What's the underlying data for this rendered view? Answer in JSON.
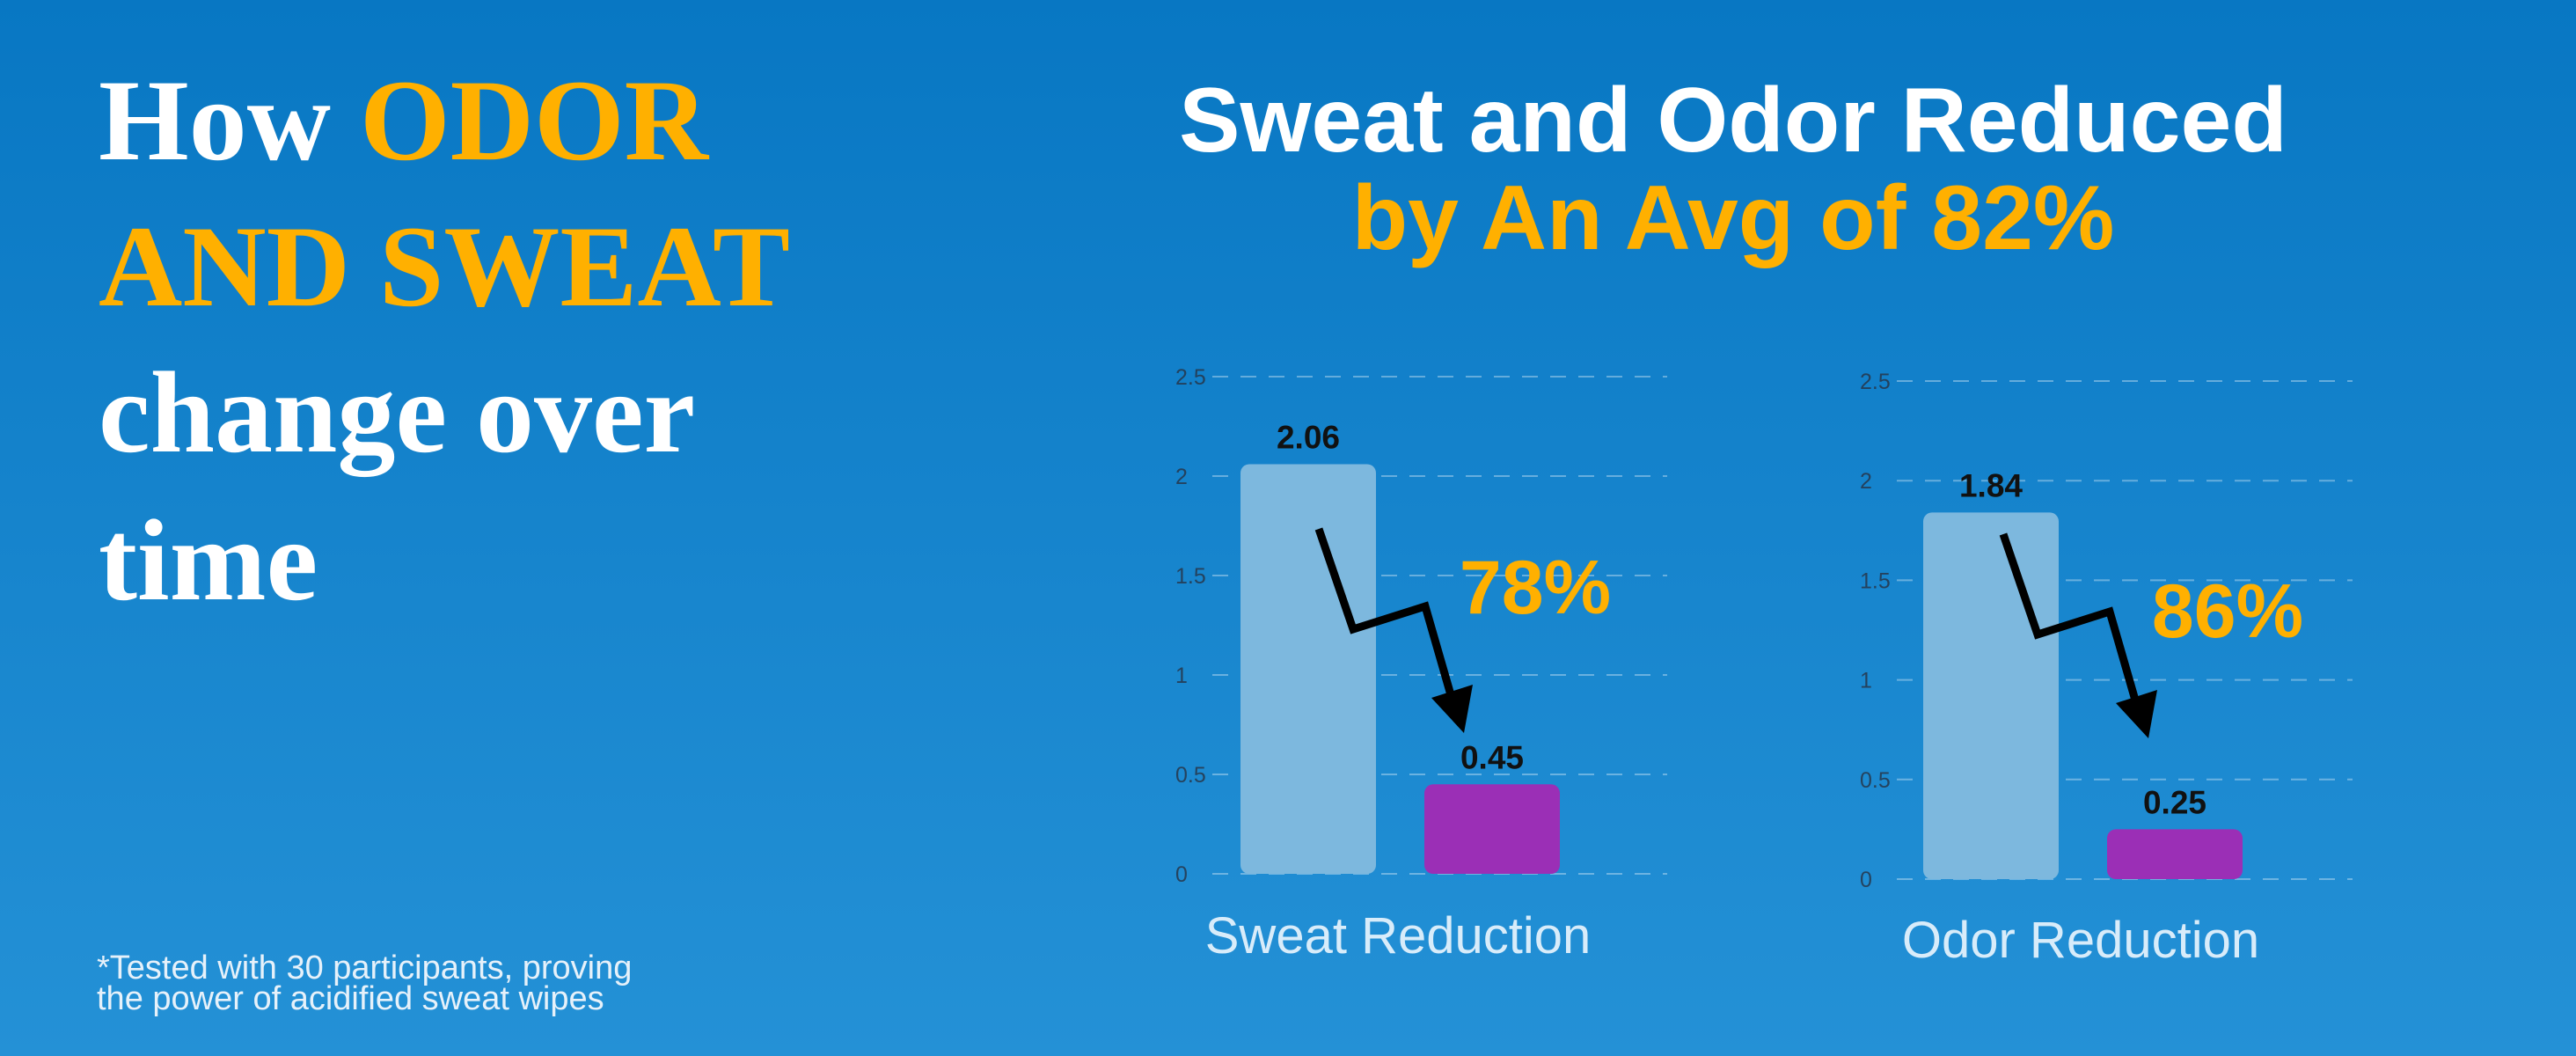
{
  "headline": {
    "line1a": "How",
    "line1b": "ODOR",
    "line2": "AND SWEAT",
    "line3": "change over",
    "line4": "time"
  },
  "heading": {
    "line1": "Sweat and Odor Reduced",
    "line2": "by An Avg of 82%"
  },
  "footnote": {
    "line1": "*Tested with 30 participants, proving",
    "line2": "the power of acidified sweat wipes"
  },
  "chart_data": [
    {
      "type": "bar",
      "categories": [
        null,
        null
      ],
      "values": [
        2.06,
        0.45
      ],
      "colors": [
        "#7db8de",
        "#9b2fb6"
      ],
      "ylim": [
        0,
        2.5
      ],
      "yticks": [
        0,
        0.5,
        1,
        1.5,
        2,
        2.5
      ],
      "grid": true,
      "xlabel": "Sweat Reduction",
      "annotation": "78%"
    },
    {
      "type": "bar",
      "categories": [
        null,
        null
      ],
      "values": [
        1.84,
        0.25
      ],
      "colors": [
        "#7db8de",
        "#9b2fb6"
      ],
      "ylim": [
        0,
        2.5
      ],
      "yticks": [
        0,
        0.5,
        1,
        1.5,
        2,
        2.5
      ],
      "grid": true,
      "xlabel": "Odor Reduction",
      "annotation": "86%"
    }
  ]
}
